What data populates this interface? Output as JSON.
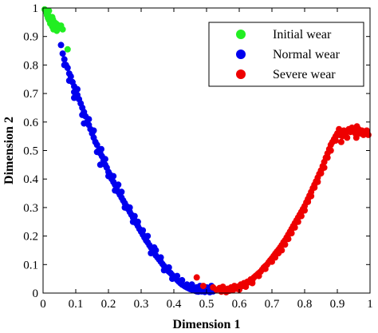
{
  "chart_data": {
    "type": "scatter",
    "xlabel": "Dimension 1",
    "ylabel": "Dimension 2",
    "xlim": [
      0,
      1
    ],
    "ylim": [
      0,
      1
    ],
    "xticks": [
      0,
      0.1,
      0.2,
      0.3,
      0.4,
      0.5,
      0.6,
      0.7,
      0.8,
      0.9,
      1
    ],
    "yticks": [
      0,
      0.1,
      0.2,
      0.3,
      0.4,
      0.5,
      0.6,
      0.7,
      0.8,
      0.9,
      1
    ],
    "xtick_labels": [
      "0",
      "0.1",
      "0.2",
      "0.3",
      "0.4",
      "0.5",
      "0.6",
      "0.7",
      "0.8",
      "0.9",
      "1"
    ],
    "ytick_labels": [
      "0",
      "0.1",
      "0.2",
      "0.3",
      "0.4",
      "0.5",
      "0.6",
      "0.7",
      "0.8",
      "0.9",
      "1"
    ],
    "grid": false,
    "legend_position": "top-right",
    "series": [
      {
        "name": "Initial wear",
        "color": "#22ee22",
        "points": [
          [
            0.005,
            0.995
          ],
          [
            0.01,
            0.985
          ],
          [
            0.012,
            0.975
          ],
          [
            0.015,
            0.965
          ],
          [
            0.018,
            0.958
          ],
          [
            0.02,
            0.97
          ],
          [
            0.022,
            0.945
          ],
          [
            0.025,
            0.955
          ],
          [
            0.028,
            0.935
          ],
          [
            0.03,
            0.96
          ],
          [
            0.032,
            0.925
          ],
          [
            0.035,
            0.95
          ],
          [
            0.038,
            0.93
          ],
          [
            0.04,
            0.945
          ],
          [
            0.042,
            0.92
          ],
          [
            0.045,
            0.94
          ],
          [
            0.048,
            0.935
          ],
          [
            0.052,
            0.93
          ],
          [
            0.055,
            0.938
          ],
          [
            0.06,
            0.925
          ],
          [
            0.018,
            0.99
          ],
          [
            0.028,
            0.968
          ],
          [
            0.075,
            0.855
          ]
        ]
      },
      {
        "name": "Normal wear",
        "color": "#0000ee",
        "points": [
          [
            0.055,
            0.87
          ],
          [
            0.06,
            0.84
          ],
          [
            0.065,
            0.82
          ],
          [
            0.07,
            0.8
          ],
          [
            0.075,
            0.79
          ],
          [
            0.08,
            0.77
          ],
          [
            0.085,
            0.76
          ],
          [
            0.09,
            0.74
          ],
          [
            0.095,
            0.725
          ],
          [
            0.1,
            0.71
          ],
          [
            0.105,
            0.695
          ],
          [
            0.11,
            0.68
          ],
          [
            0.115,
            0.665
          ],
          [
            0.12,
            0.65
          ],
          [
            0.125,
            0.635
          ],
          [
            0.13,
            0.62
          ],
          [
            0.135,
            0.6
          ],
          [
            0.14,
            0.59
          ],
          [
            0.145,
            0.575
          ],
          [
            0.15,
            0.56
          ],
          [
            0.155,
            0.545
          ],
          [
            0.16,
            0.53
          ],
          [
            0.165,
            0.52
          ],
          [
            0.17,
            0.5
          ],
          [
            0.175,
            0.49
          ],
          [
            0.18,
            0.48
          ],
          [
            0.185,
            0.465
          ],
          [
            0.19,
            0.45
          ],
          [
            0.195,
            0.44
          ],
          [
            0.2,
            0.425
          ],
          [
            0.205,
            0.415
          ],
          [
            0.21,
            0.4
          ],
          [
            0.215,
            0.39
          ],
          [
            0.22,
            0.38
          ],
          [
            0.225,
            0.37
          ],
          [
            0.23,
            0.355
          ],
          [
            0.235,
            0.345
          ],
          [
            0.24,
            0.335
          ],
          [
            0.245,
            0.325
          ],
          [
            0.25,
            0.315
          ],
          [
            0.255,
            0.305
          ],
          [
            0.26,
            0.295
          ],
          [
            0.265,
            0.285
          ],
          [
            0.27,
            0.275
          ],
          [
            0.275,
            0.265
          ],
          [
            0.28,
            0.255
          ],
          [
            0.285,
            0.245
          ],
          [
            0.29,
            0.235
          ],
          [
            0.295,
            0.225
          ],
          [
            0.3,
            0.215
          ],
          [
            0.305,
            0.205
          ],
          [
            0.31,
            0.195
          ],
          [
            0.315,
            0.185
          ],
          [
            0.32,
            0.178
          ],
          [
            0.325,
            0.168
          ],
          [
            0.33,
            0.16
          ],
          [
            0.335,
            0.15
          ],
          [
            0.34,
            0.14
          ],
          [
            0.345,
            0.132
          ],
          [
            0.35,
            0.125
          ],
          [
            0.355,
            0.118
          ],
          [
            0.36,
            0.11
          ],
          [
            0.365,
            0.102
          ],
          [
            0.37,
            0.095
          ],
          [
            0.375,
            0.088
          ],
          [
            0.38,
            0.082
          ],
          [
            0.385,
            0.075
          ],
          [
            0.39,
            0.07
          ],
          [
            0.395,
            0.063
          ],
          [
            0.4,
            0.057
          ],
          [
            0.405,
            0.052
          ],
          [
            0.41,
            0.046
          ],
          [
            0.415,
            0.04
          ],
          [
            0.42,
            0.035
          ],
          [
            0.425,
            0.03
          ],
          [
            0.43,
            0.027
          ],
          [
            0.435,
            0.023
          ],
          [
            0.44,
            0.02
          ],
          [
            0.445,
            0.017
          ],
          [
            0.45,
            0.014
          ],
          [
            0.455,
            0.012
          ],
          [
            0.46,
            0.01
          ],
          [
            0.465,
            0.008
          ],
          [
            0.47,
            0.006
          ],
          [
            0.475,
            0.005
          ],
          [
            0.48,
            0.012
          ],
          [
            0.485,
            0.006
          ],
          [
            0.49,
            0.015
          ],
          [
            0.495,
            0.004
          ],
          [
            0.5,
            0.01
          ],
          [
            0.505,
            0.008
          ],
          [
            0.51,
            0.003
          ],
          [
            0.515,
            0.012
          ],
          [
            0.52,
            0.006
          ],
          [
            0.065,
            0.8
          ],
          [
            0.08,
            0.745
          ],
          [
            0.095,
            0.705
          ],
          [
            0.105,
            0.715
          ],
          [
            0.12,
            0.625
          ],
          [
            0.14,
            0.61
          ],
          [
            0.155,
            0.57
          ],
          [
            0.165,
            0.495
          ],
          [
            0.178,
            0.505
          ],
          [
            0.19,
            0.47
          ],
          [
            0.2,
            0.41
          ],
          [
            0.215,
            0.41
          ],
          [
            0.23,
            0.38
          ],
          [
            0.24,
            0.355
          ],
          [
            0.25,
            0.3
          ],
          [
            0.265,
            0.3
          ],
          [
            0.275,
            0.25
          ],
          [
            0.29,
            0.25
          ],
          [
            0.305,
            0.22
          ],
          [
            0.32,
            0.2
          ],
          [
            0.33,
            0.14
          ],
          [
            0.345,
            0.15
          ],
          [
            0.36,
            0.125
          ],
          [
            0.37,
            0.08
          ],
          [
            0.385,
            0.09
          ],
          [
            0.395,
            0.05
          ],
          [
            0.41,
            0.06
          ],
          [
            0.425,
            0.045
          ],
          [
            0.44,
            0.03
          ],
          [
            0.455,
            0.03
          ],
          [
            0.47,
            0.02
          ],
          [
            0.48,
            0.025
          ],
          [
            0.5,
            0.02
          ],
          [
            0.515,
            0.025
          ],
          [
            0.095,
            0.685
          ],
          [
            0.125,
            0.595
          ],
          [
            0.175,
            0.45
          ],
          [
            0.22,
            0.36
          ],
          [
            0.28,
            0.27
          ],
          [
            0.34,
            0.16
          ]
        ]
      },
      {
        "name": "Severe wear",
        "color": "#ee0000",
        "points": [
          [
            0.47,
            0.055
          ],
          [
            0.49,
            0.025
          ],
          [
            0.52,
            0.02
          ],
          [
            0.53,
            0.012
          ],
          [
            0.54,
            0.018
          ],
          [
            0.545,
            0.005
          ],
          [
            0.55,
            0.022
          ],
          [
            0.555,
            0.01
          ],
          [
            0.56,
            0.003
          ],
          [
            0.565,
            0.015
          ],
          [
            0.57,
            0.008
          ],
          [
            0.575,
            0.02
          ],
          [
            0.58,
            0.01
          ],
          [
            0.585,
            0.025
          ],
          [
            0.59,
            0.015
          ],
          [
            0.595,
            0.022
          ],
          [
            0.6,
            0.018
          ],
          [
            0.605,
            0.03
          ],
          [
            0.61,
            0.025
          ],
          [
            0.615,
            0.035
          ],
          [
            0.62,
            0.03
          ],
          [
            0.625,
            0.04
          ],
          [
            0.63,
            0.038
          ],
          [
            0.635,
            0.048
          ],
          [
            0.64,
            0.045
          ],
          [
            0.645,
            0.055
          ],
          [
            0.65,
            0.06
          ],
          [
            0.655,
            0.065
          ],
          [
            0.66,
            0.07
          ],
          [
            0.665,
            0.075
          ],
          [
            0.67,
            0.082
          ],
          [
            0.675,
            0.09
          ],
          [
            0.68,
            0.095
          ],
          [
            0.685,
            0.1
          ],
          [
            0.69,
            0.108
          ],
          [
            0.695,
            0.115
          ],
          [
            0.7,
            0.122
          ],
          [
            0.705,
            0.13
          ],
          [
            0.71,
            0.138
          ],
          [
            0.715,
            0.145
          ],
          [
            0.72,
            0.152
          ],
          [
            0.725,
            0.16
          ],
          [
            0.73,
            0.168
          ],
          [
            0.735,
            0.178
          ],
          [
            0.74,
            0.185
          ],
          [
            0.745,
            0.195
          ],
          [
            0.75,
            0.205
          ],
          [
            0.755,
            0.215
          ],
          [
            0.76,
            0.225
          ],
          [
            0.765,
            0.235
          ],
          [
            0.77,
            0.245
          ],
          [
            0.775,
            0.255
          ],
          [
            0.78,
            0.265
          ],
          [
            0.785,
            0.275
          ],
          [
            0.79,
            0.285
          ],
          [
            0.795,
            0.295
          ],
          [
            0.8,
            0.305
          ],
          [
            0.805,
            0.318
          ],
          [
            0.81,
            0.33
          ],
          [
            0.815,
            0.342
          ],
          [
            0.82,
            0.355
          ],
          [
            0.825,
            0.368
          ],
          [
            0.83,
            0.38
          ],
          [
            0.835,
            0.392
          ],
          [
            0.84,
            0.405
          ],
          [
            0.845,
            0.418
          ],
          [
            0.85,
            0.43
          ],
          [
            0.855,
            0.445
          ],
          [
            0.86,
            0.46
          ],
          [
            0.865,
            0.475
          ],
          [
            0.87,
            0.49
          ],
          [
            0.875,
            0.505
          ],
          [
            0.88,
            0.52
          ],
          [
            0.885,
            0.53
          ],
          [
            0.89,
            0.54
          ],
          [
            0.895,
            0.55
          ],
          [
            0.9,
            0.56
          ],
          [
            0.905,
            0.555
          ],
          [
            0.91,
            0.565
          ],
          [
            0.915,
            0.55
          ],
          [
            0.92,
            0.57
          ],
          [
            0.925,
            0.56
          ],
          [
            0.93,
            0.545
          ],
          [
            0.935,
            0.575
          ],
          [
            0.94,
            0.565
          ],
          [
            0.945,
            0.58
          ],
          [
            0.95,
            0.57
          ],
          [
            0.955,
            0.56
          ],
          [
            0.96,
            0.585
          ],
          [
            0.965,
            0.575
          ],
          [
            0.97,
            0.56
          ],
          [
            0.975,
            0.57
          ],
          [
            0.98,
            0.555
          ],
          [
            0.985,
            0.565
          ],
          [
            0.99,
            0.57
          ],
          [
            0.995,
            0.555
          ],
          [
            0.958,
            0.545
          ],
          [
            0.905,
            0.575
          ],
          [
            0.895,
            0.535
          ],
          [
            0.912,
            0.53
          ],
          [
            0.6,
            0.012
          ],
          [
            0.62,
            0.022
          ],
          [
            0.64,
            0.035
          ],
          [
            0.66,
            0.06
          ],
          [
            0.68,
            0.085
          ],
          [
            0.7,
            0.11
          ],
          [
            0.72,
            0.14
          ],
          [
            0.74,
            0.17
          ],
          [
            0.76,
            0.21
          ],
          [
            0.78,
            0.25
          ],
          [
            0.8,
            0.29
          ],
          [
            0.82,
            0.34
          ],
          [
            0.84,
            0.39
          ],
          [
            0.86,
            0.44
          ],
          [
            0.88,
            0.5
          ],
          [
            0.71,
            0.125
          ],
          [
            0.73,
            0.15
          ],
          [
            0.75,
            0.19
          ],
          [
            0.77,
            0.23
          ],
          [
            0.79,
            0.27
          ],
          [
            0.81,
            0.32
          ],
          [
            0.83,
            0.37
          ],
          [
            0.85,
            0.42
          ],
          [
            0.87,
            0.475
          ],
          [
            0.575,
            0.01
          ]
        ]
      }
    ]
  }
}
